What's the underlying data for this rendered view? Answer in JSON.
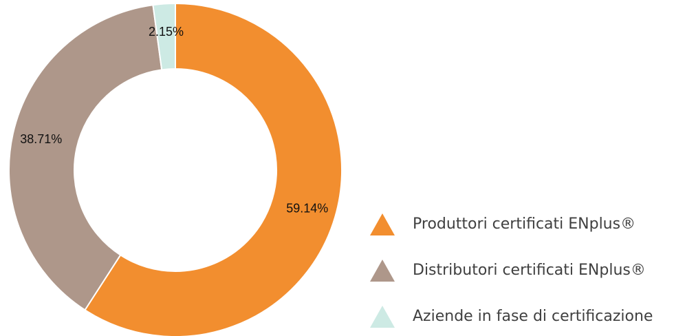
{
  "chart_data": {
    "type": "donut",
    "categories": [
      "Produttori certificati ENplus®",
      "Distributori certificati ENplus®",
      "Aziende in fase di certificazione"
    ],
    "values": [
      59.14,
      38.71,
      2.15
    ],
    "value_labels": [
      "59.14%",
      "38.71%",
      "2.15%"
    ],
    "colors": [
      "#f28e2f",
      "#ae978a",
      "#cdeae4"
    ],
    "legend": "bottom-right"
  }
}
